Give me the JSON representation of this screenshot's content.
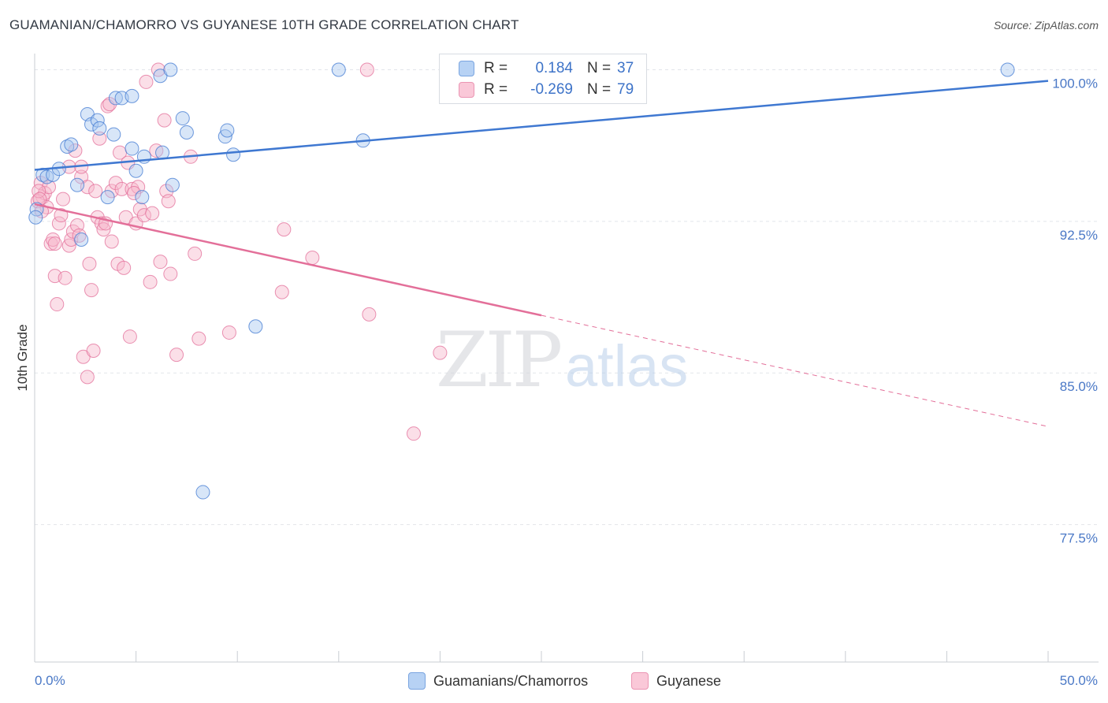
{
  "header": {
    "title": "GUAMANIAN/CHAMORRO VS GUYANESE 10TH GRADE CORRELATION CHART",
    "source": "Source: ZipAtlas.com"
  },
  "stats": {
    "row1": {
      "r_label": "R =",
      "r_value": "0.184",
      "n_label": "N =",
      "n_value": "37"
    },
    "row2": {
      "r_label": "R =",
      "r_value": "-0.269",
      "n_label": "N =",
      "n_value": "79"
    }
  },
  "legend": {
    "series1": "Guamanians/Chamorros",
    "series2": "Guyanese"
  },
  "colors": {
    "blue": "#3f78d1",
    "blue_fill": "#a9c8f0",
    "pink": "#e36f99",
    "pink_fill": "#f7b9cd",
    "grid": "#e2e5ea",
    "tick_label": "#4a78c6"
  },
  "chart_data": {
    "type": "scatter",
    "title": "GUAMANIAN/CHAMORRO VS GUYANESE 10TH GRADE CORRELATION CHART",
    "ylabel": "10th Grade",
    "xlabel": "",
    "xlim": [
      0,
      50
    ],
    "ylim": [
      70.7,
      100.8
    ],
    "x_tick_labels": [
      "0.0%",
      "50.0%"
    ],
    "y_ticks": [
      77.5,
      85.0,
      92.5,
      100.0
    ],
    "y_tick_labels": [
      "77.5%",
      "85.0%",
      "92.5%",
      "100.0%"
    ],
    "watermark": {
      "zip": "ZIP",
      "atlas": "atlas"
    },
    "series": [
      {
        "name": "Guamanians/Chamorros",
        "r": 0.184,
        "n": 37,
        "trend": {
          "x0": 0,
          "y0": 95.05,
          "x1": 50,
          "y1": 99.45
        },
        "points": [
          [
            0.1,
            93.1
          ],
          [
            0.4,
            94.8
          ],
          [
            0.6,
            94.7
          ],
          [
            0.9,
            94.8
          ],
          [
            1.2,
            95.1
          ],
          [
            1.6,
            96.2
          ],
          [
            1.8,
            96.3
          ],
          [
            2.1,
            94.3
          ],
          [
            2.3,
            91.6
          ],
          [
            2.6,
            97.8
          ],
          [
            2.8,
            97.3
          ],
          [
            3.1,
            97.5
          ],
          [
            3.2,
            97.1
          ],
          [
            3.6,
            93.7
          ],
          [
            3.9,
            96.8
          ],
          [
            4.0,
            98.6
          ],
          [
            4.3,
            98.6
          ],
          [
            4.8,
            96.1
          ],
          [
            4.8,
            98.7
          ],
          [
            5.0,
            95.0
          ],
          [
            5.3,
            93.7
          ],
          [
            5.4,
            95.7
          ],
          [
            6.2,
            99.7
          ],
          [
            6.3,
            95.9
          ],
          [
            6.7,
            100.0
          ],
          [
            6.8,
            94.3
          ],
          [
            7.3,
            97.6
          ],
          [
            7.5,
            96.9
          ],
          [
            8.3,
            79.1
          ],
          [
            9.4,
            96.7
          ],
          [
            9.5,
            97.0
          ],
          [
            9.8,
            95.8
          ],
          [
            10.9,
            87.3
          ],
          [
            15.0,
            100.0
          ],
          [
            16.2,
            96.5
          ],
          [
            48.0,
            100.0
          ],
          [
            0.05,
            92.7
          ]
        ]
      },
      {
        "name": "Guyanese",
        "r": -0.269,
        "n": 79,
        "trend": {
          "x0": 0,
          "y0": 93.35,
          "x1": 25.0,
          "y1": 87.85
        },
        "trend_dashed": {
          "x0": 25.0,
          "y0": 87.85,
          "x1": 50,
          "y1": 82.35
        },
        "points": [
          [
            0.3,
            94.4
          ],
          [
            0.4,
            93.7
          ],
          [
            0.5,
            93.9
          ],
          [
            0.6,
            93.2
          ],
          [
            0.7,
            94.2
          ],
          [
            0.8,
            91.4
          ],
          [
            0.9,
            91.6
          ],
          [
            1.0,
            89.8
          ],
          [
            1.1,
            88.4
          ],
          [
            1.2,
            92.4
          ],
          [
            1.3,
            92.8
          ],
          [
            1.4,
            93.6
          ],
          [
            1.5,
            89.7
          ],
          [
            1.7,
            95.2
          ],
          [
            1.7,
            91.3
          ],
          [
            1.8,
            91.6
          ],
          [
            1.9,
            92.0
          ],
          [
            2.0,
            96.0
          ],
          [
            2.1,
            92.3
          ],
          [
            2.3,
            94.7
          ],
          [
            2.3,
            95.2
          ],
          [
            2.4,
            85.8
          ],
          [
            2.6,
            84.8
          ],
          [
            2.6,
            94.2
          ],
          [
            2.7,
            90.4
          ],
          [
            2.8,
            89.1
          ],
          [
            2.9,
            86.1
          ],
          [
            3.0,
            94.0
          ],
          [
            3.1,
            92.7
          ],
          [
            3.2,
            96.6
          ],
          [
            3.3,
            92.4
          ],
          [
            3.4,
            92.1
          ],
          [
            3.5,
            92.4
          ],
          [
            3.6,
            98.2
          ],
          [
            3.8,
            94.0
          ],
          [
            3.8,
            91.5
          ],
          [
            4.0,
            94.4
          ],
          [
            4.1,
            90.4
          ],
          [
            4.2,
            95.9
          ],
          [
            4.3,
            94.1
          ],
          [
            4.4,
            90.2
          ],
          [
            4.5,
            92.7
          ],
          [
            4.6,
            95.4
          ],
          [
            4.7,
            86.8
          ],
          [
            4.8,
            94.1
          ],
          [
            5.0,
            92.4
          ],
          [
            5.2,
            93.1
          ],
          [
            5.4,
            92.8
          ],
          [
            5.5,
            99.4
          ],
          [
            5.7,
            89.5
          ],
          [
            5.8,
            92.9
          ],
          [
            6.0,
            96.0
          ],
          [
            6.1,
            100.0
          ],
          [
            6.2,
            90.5
          ],
          [
            6.4,
            97.5
          ],
          [
            6.5,
            94.0
          ],
          [
            6.6,
            93.5
          ],
          [
            6.7,
            89.9
          ],
          [
            7.0,
            85.9
          ],
          [
            7.7,
            95.7
          ],
          [
            7.9,
            90.9
          ],
          [
            8.1,
            86.7
          ],
          [
            9.6,
            87.0
          ],
          [
            12.2,
            89.0
          ],
          [
            12.3,
            92.1
          ],
          [
            13.7,
            90.7
          ],
          [
            16.4,
            100.0
          ],
          [
            16.5,
            87.9
          ],
          [
            20.0,
            86.0
          ],
          [
            18.7,
            82.0
          ],
          [
            0.15,
            93.5
          ],
          [
            0.2,
            94.0
          ],
          [
            0.25,
            93.6
          ],
          [
            0.35,
            93.0
          ],
          [
            1.0,
            91.4
          ],
          [
            2.2,
            91.8
          ],
          [
            3.7,
            98.3
          ],
          [
            5.1,
            94.2
          ],
          [
            4.9,
            93.9
          ]
        ]
      }
    ]
  }
}
